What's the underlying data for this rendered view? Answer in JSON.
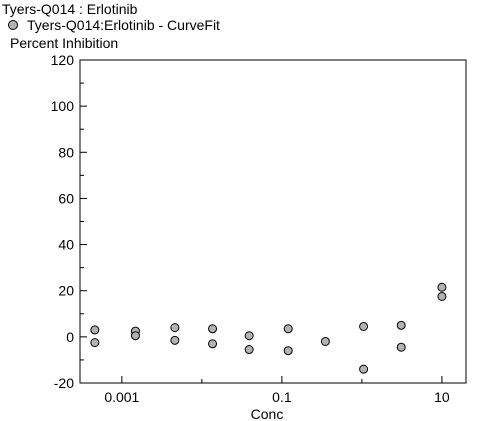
{
  "chart_data": {
    "type": "scatter",
    "title": "Tyers-Q014  : Erlotinib",
    "legend": [
      {
        "label": "Tyers-Q014:Erlotinib - CurveFit",
        "marker_color": "#b3b3b3"
      }
    ],
    "ylabel": "Percent Inhibition",
    "xlabel": "Conc",
    "x_scale": "log",
    "xlim": [
      0.0003,
      20
    ],
    "ylim": [
      -20,
      120
    ],
    "x_tick_labels": [
      "0.001",
      "0.1",
      "10"
    ],
    "x_ticks": [
      0.001,
      0.1,
      10
    ],
    "y_ticks": [
      -20,
      0,
      20,
      40,
      60,
      80,
      100,
      120
    ],
    "grid": false,
    "series": [
      {
        "name": "Tyers-Q014:Erlotinib - CurveFit",
        "points": [
          {
            "x": 0.00046,
            "y": 3
          },
          {
            "x": 0.00046,
            "y": -2.5
          },
          {
            "x": 0.00148,
            "y": 2.5
          },
          {
            "x": 0.00148,
            "y": 0.5
          },
          {
            "x": 0.0046,
            "y": 4
          },
          {
            "x": 0.0046,
            "y": -1.5
          },
          {
            "x": 0.0136,
            "y": 3.5
          },
          {
            "x": 0.0136,
            "y": -3
          },
          {
            "x": 0.039,
            "y": 0.5
          },
          {
            "x": 0.039,
            "y": -5.5
          },
          {
            "x": 0.12,
            "y": 3.5
          },
          {
            "x": 0.12,
            "y": -6
          },
          {
            "x": 0.35,
            "y": -2
          },
          {
            "x": 1.05,
            "y": 4.5
          },
          {
            "x": 1.05,
            "y": -14
          },
          {
            "x": 3.1,
            "y": 5
          },
          {
            "x": 3.1,
            "y": -4.5
          },
          {
            "x": 10,
            "y": 21.5
          },
          {
            "x": 10,
            "y": 17.5
          }
        ]
      }
    ]
  }
}
